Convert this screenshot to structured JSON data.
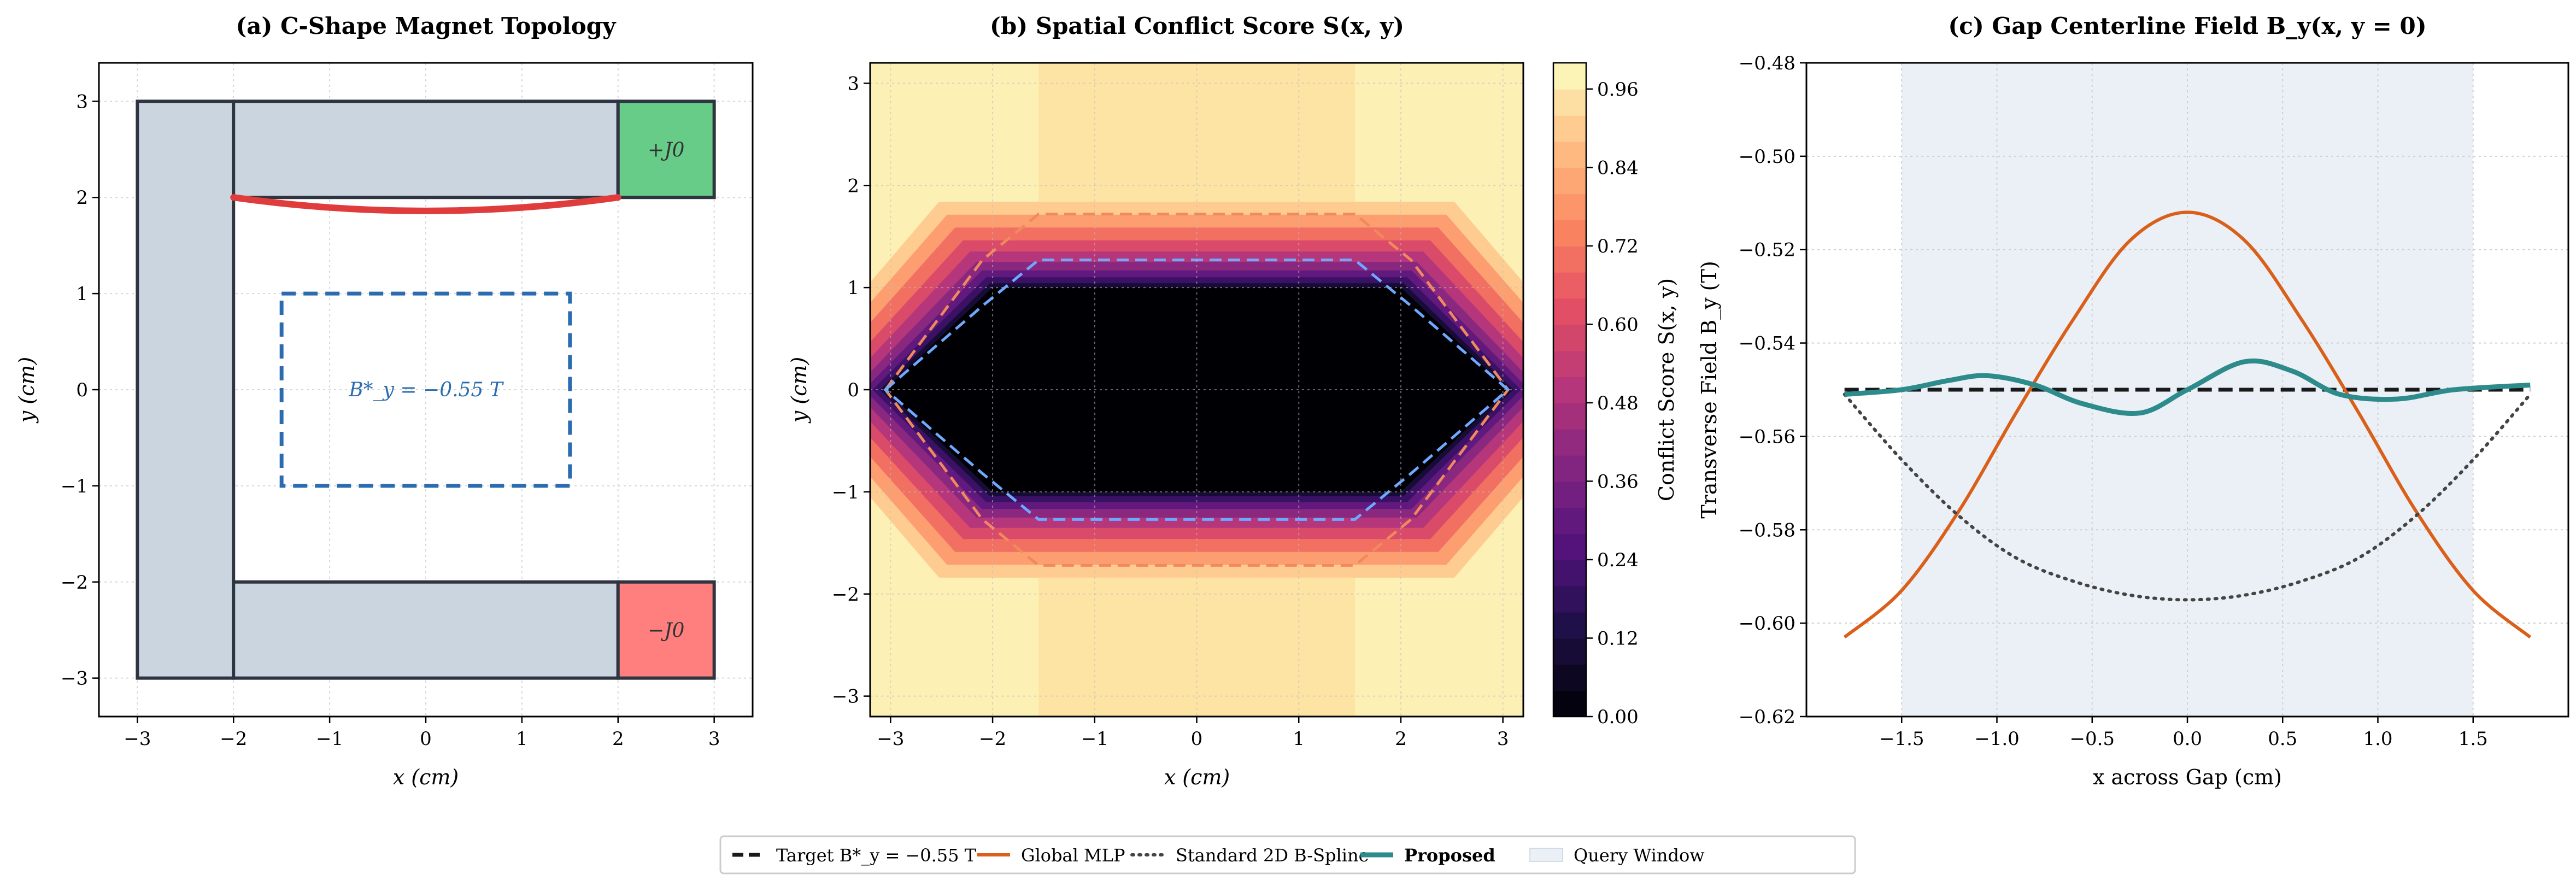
{
  "figure": {
    "legend": {
      "items": [
        {
          "label": "Target B*_y = −0.55 T",
          "style": "dashed",
          "color": "#1a1a1a"
        },
        {
          "label": "Global MLP",
          "style": "solid",
          "color": "#d95f1a"
        },
        {
          "label": "Standard 2D B-Spline",
          "style": "dotted",
          "color": "#444444"
        },
        {
          "label": "Proposed",
          "style": "solid-thick",
          "color": "#2e8b8b"
        },
        {
          "label": "Query Window",
          "style": "patch",
          "color": "#eaf0f5"
        }
      ]
    }
  },
  "chart_data": [
    {
      "type": "diagram",
      "title": "(a) C-Shape Magnet Topology",
      "xlabel": "x (cm)",
      "ylabel": "y (cm)",
      "xlim": [
        -3.4,
        3.4
      ],
      "ylim": [
        -3.4,
        3.4
      ],
      "xticks": [
        "−3",
        "−2",
        "−1",
        "0",
        "1",
        "2",
        "3"
      ],
      "yticks": [
        "−3",
        "−2",
        "−1",
        "0",
        "1",
        "2",
        "3"
      ],
      "grid": true,
      "iron_color": "#cbd5e0",
      "regions": [
        {
          "name": "yoke-spine",
          "x": [
            -3,
            -2
          ],
          "y": [
            -3,
            3
          ]
        },
        {
          "name": "upper-arm",
          "x": [
            -2,
            2
          ],
          "y": [
            2,
            3
          ]
        },
        {
          "name": "lower-arm",
          "x": [
            -2,
            2
          ],
          "y": [
            -3,
            -2
          ]
        }
      ],
      "coils": [
        {
          "label": "+J0",
          "x": [
            2,
            3
          ],
          "y": [
            2,
            3
          ],
          "color": "#66cc88"
        },
        {
          "label": "−J0",
          "x": [
            2,
            3
          ],
          "y": [
            -3,
            -2
          ],
          "color": "#ff7f7f"
        }
      ],
      "pole_curve": {
        "x": [
          -2,
          2
        ],
        "y_ends": 2.0,
        "y_mid": 1.86,
        "color": "#e03c3c"
      },
      "target_window": {
        "x": [
          -1.5,
          1.5
        ],
        "y": [
          -1,
          1
        ],
        "color": "#2b6cb0"
      },
      "annotation": "B*_y = −0.55 T"
    },
    {
      "type": "heatmap",
      "title": "(b) Spatial Conflict Score S(x, y)",
      "xlabel": "x (cm)",
      "ylabel": "y (cm)",
      "xlim": [
        -3.2,
        3.2
      ],
      "ylim": [
        -3.2,
        3.2
      ],
      "xticks": [
        "−3",
        "−2",
        "−1",
        "0",
        "1",
        "2",
        "3"
      ],
      "yticks": [
        "−3",
        "−2",
        "−1",
        "0",
        "1",
        "2",
        "3"
      ],
      "grid": true,
      "colorbar": {
        "label": "Conflict Score S(x, y)",
        "range": [
          0,
          1
        ],
        "ticks": [
          "0.00",
          "0.12",
          "0.24",
          "0.36",
          "0.48",
          "0.60",
          "0.72",
          "0.84",
          "0.96"
        ]
      },
      "field": {
        "outer_value": 0.97,
        "central_band": {
          "x": [
            -1.55,
            1.55
          ],
          "value": 0.92
        },
        "inner_core": {
          "x": [
            -2.0,
            2.0
          ],
          "y": [
            -1.0,
            1.0
          ],
          "tip_x": 3.05,
          "value": 0.0
        }
      },
      "contours": [
        {
          "level": "outer",
          "color": "#f08a5d",
          "half_width_flat": 1.55,
          "flat_y": 1.72,
          "tip_x": 3.05
        },
        {
          "level": "inner",
          "color": "#6fa8ff",
          "half_width_flat": 1.55,
          "flat_y": 1.27,
          "tip_x": 3.05
        }
      ]
    },
    {
      "type": "line",
      "title": "(c) Gap Centerline Field B_y(x, y = 0)",
      "xlabel": "x across Gap (cm)",
      "ylabel": "Transverse Field B_y (T)",
      "xlim": [
        -2.0,
        2.0
      ],
      "ylim": [
        -0.62,
        -0.48
      ],
      "xticks": [
        "−1.5",
        "−1.0",
        "−0.5",
        "0.0",
        "0.5",
        "1.0",
        "1.5"
      ],
      "yticks": [
        "−0.62",
        "−0.60",
        "−0.58",
        "−0.56",
        "−0.54",
        "−0.52",
        "−0.50",
        "−0.48"
      ],
      "grid": true,
      "query_window": [
        -1.5,
        1.5
      ],
      "series": [
        {
          "name": "Target B*_y = −0.55 T",
          "style": "dashed",
          "color": "#1a1a1a",
          "x": [
            -1.8,
            1.8
          ],
          "y": [
            -0.55,
            -0.55
          ]
        },
        {
          "name": "Global MLP",
          "style": "solid",
          "color": "#d95f1a",
          "x": [
            -1.8,
            -1.5,
            -1.2,
            -0.9,
            -0.6,
            -0.3,
            0.0,
            0.3,
            0.6,
            0.9,
            1.2,
            1.5,
            1.8
          ],
          "y": [
            -0.603,
            -0.593,
            -0.576,
            -0.555,
            -0.535,
            -0.518,
            -0.512,
            -0.518,
            -0.535,
            -0.555,
            -0.576,
            -0.593,
            -0.603
          ]
        },
        {
          "name": "Standard 2D B-Spline",
          "style": "dotted",
          "color": "#444444",
          "x": [
            -1.8,
            -1.5,
            -1.2,
            -0.9,
            -0.6,
            -0.3,
            0.0,
            0.3,
            0.6,
            0.9,
            1.2,
            1.5,
            1.8
          ],
          "y": [
            -0.551,
            -0.565,
            -0.577,
            -0.586,
            -0.591,
            -0.594,
            -0.595,
            -0.594,
            -0.591,
            -0.586,
            -0.577,
            -0.565,
            -0.551
          ]
        },
        {
          "name": "Proposed",
          "style": "solid-thick",
          "color": "#2e8b8b",
          "x": [
            -1.8,
            -1.5,
            -1.25,
            -1.05,
            -0.8,
            -0.55,
            -0.25,
            0.0,
            0.3,
            0.55,
            0.8,
            1.1,
            1.4,
            1.8
          ],
          "y": [
            -0.551,
            -0.55,
            -0.548,
            -0.547,
            -0.549,
            -0.553,
            -0.555,
            -0.55,
            -0.544,
            -0.546,
            -0.551,
            -0.552,
            -0.55,
            -0.549
          ]
        }
      ]
    }
  ]
}
